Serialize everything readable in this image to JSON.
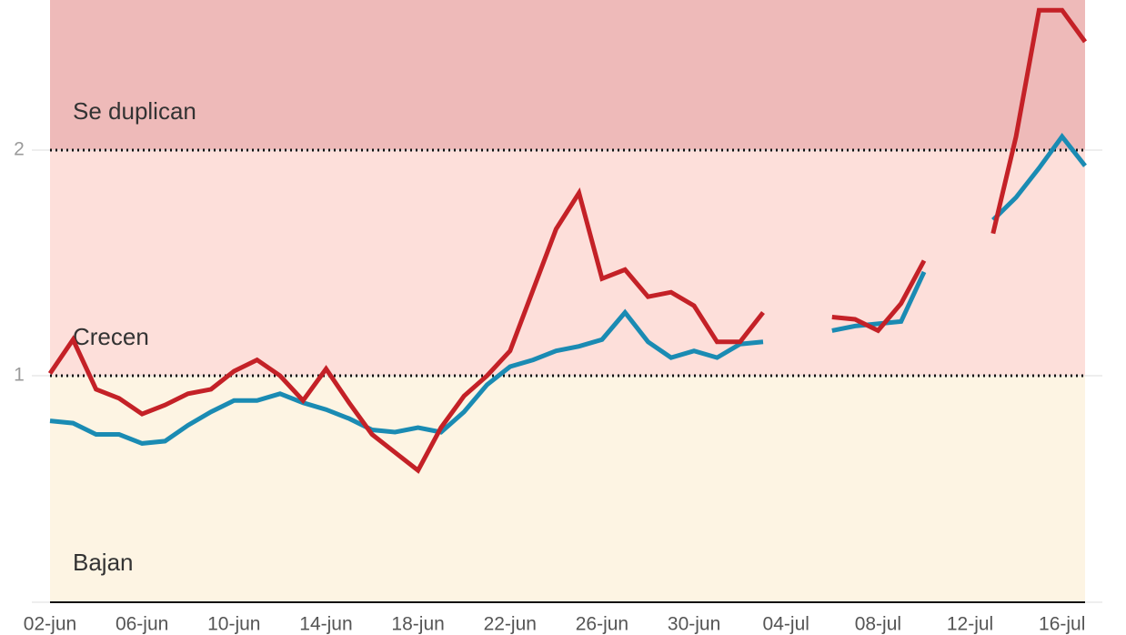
{
  "chart_data": {
    "type": "line",
    "categories": [
      "02-jun",
      null,
      null,
      null,
      "06-jun",
      null,
      null,
      null,
      "10-jun",
      null,
      null,
      null,
      "14-jun",
      null,
      null,
      null,
      "18-jun",
      null,
      null,
      null,
      "22-jun",
      null,
      null,
      null,
      "26-jun",
      null,
      null,
      null,
      "30-jun",
      null,
      null,
      null,
      "04-jul",
      null,
      null,
      null,
      "08-jul",
      null,
      null,
      null,
      "12-jul",
      null,
      null,
      null,
      "16-jul",
      null
    ],
    "series": [
      {
        "color": "#1a8bb3",
        "values": [
          0.8,
          0.79,
          0.74,
          0.74,
          0.7,
          0.71,
          0.78,
          0.84,
          0.89,
          0.89,
          0.92,
          0.88,
          0.85,
          0.81,
          0.76,
          0.75,
          0.77,
          0.75,
          0.84,
          0.96,
          1.04,
          1.07,
          1.11,
          1.13,
          1.16,
          1.28,
          1.15,
          1.08,
          1.11,
          1.08,
          1.14,
          1.15,
          null,
          null,
          1.2,
          1.22,
          1.23,
          1.24,
          1.46,
          null,
          null,
          1.69,
          1.79,
          1.92,
          2.06,
          1.93
        ]
      },
      {
        "color": "#c42127",
        "values": [
          1.01,
          1.16,
          0.94,
          0.9,
          0.83,
          0.87,
          0.92,
          0.94,
          1.02,
          1.07,
          1.0,
          0.89,
          1.03,
          0.88,
          0.74,
          0.66,
          0.58,
          0.77,
          0.91,
          1.0,
          1.11,
          1.38,
          1.65,
          1.81,
          1.43,
          1.47,
          1.35,
          1.37,
          1.31,
          1.15,
          1.15,
          1.28,
          null,
          null,
          1.26,
          1.25,
          1.2,
          1.32,
          1.51,
          null,
          null,
          1.63,
          2.06,
          2.62,
          2.62,
          2.48
        ]
      }
    ],
    "bands": [
      {
        "label": "Bajan",
        "from": 0,
        "to": 1,
        "color": "#fdf4e3"
      },
      {
        "label": "Crecen",
        "from": 1,
        "to": 2,
        "color": "#fddfda"
      },
      {
        "label": "Se duplican",
        "from": 2,
        "to": 2.665,
        "color": "#eebab9"
      }
    ],
    "ylim": [
      0,
      2.665
    ],
    "yticks": [
      1,
      2
    ],
    "grid": true
  }
}
